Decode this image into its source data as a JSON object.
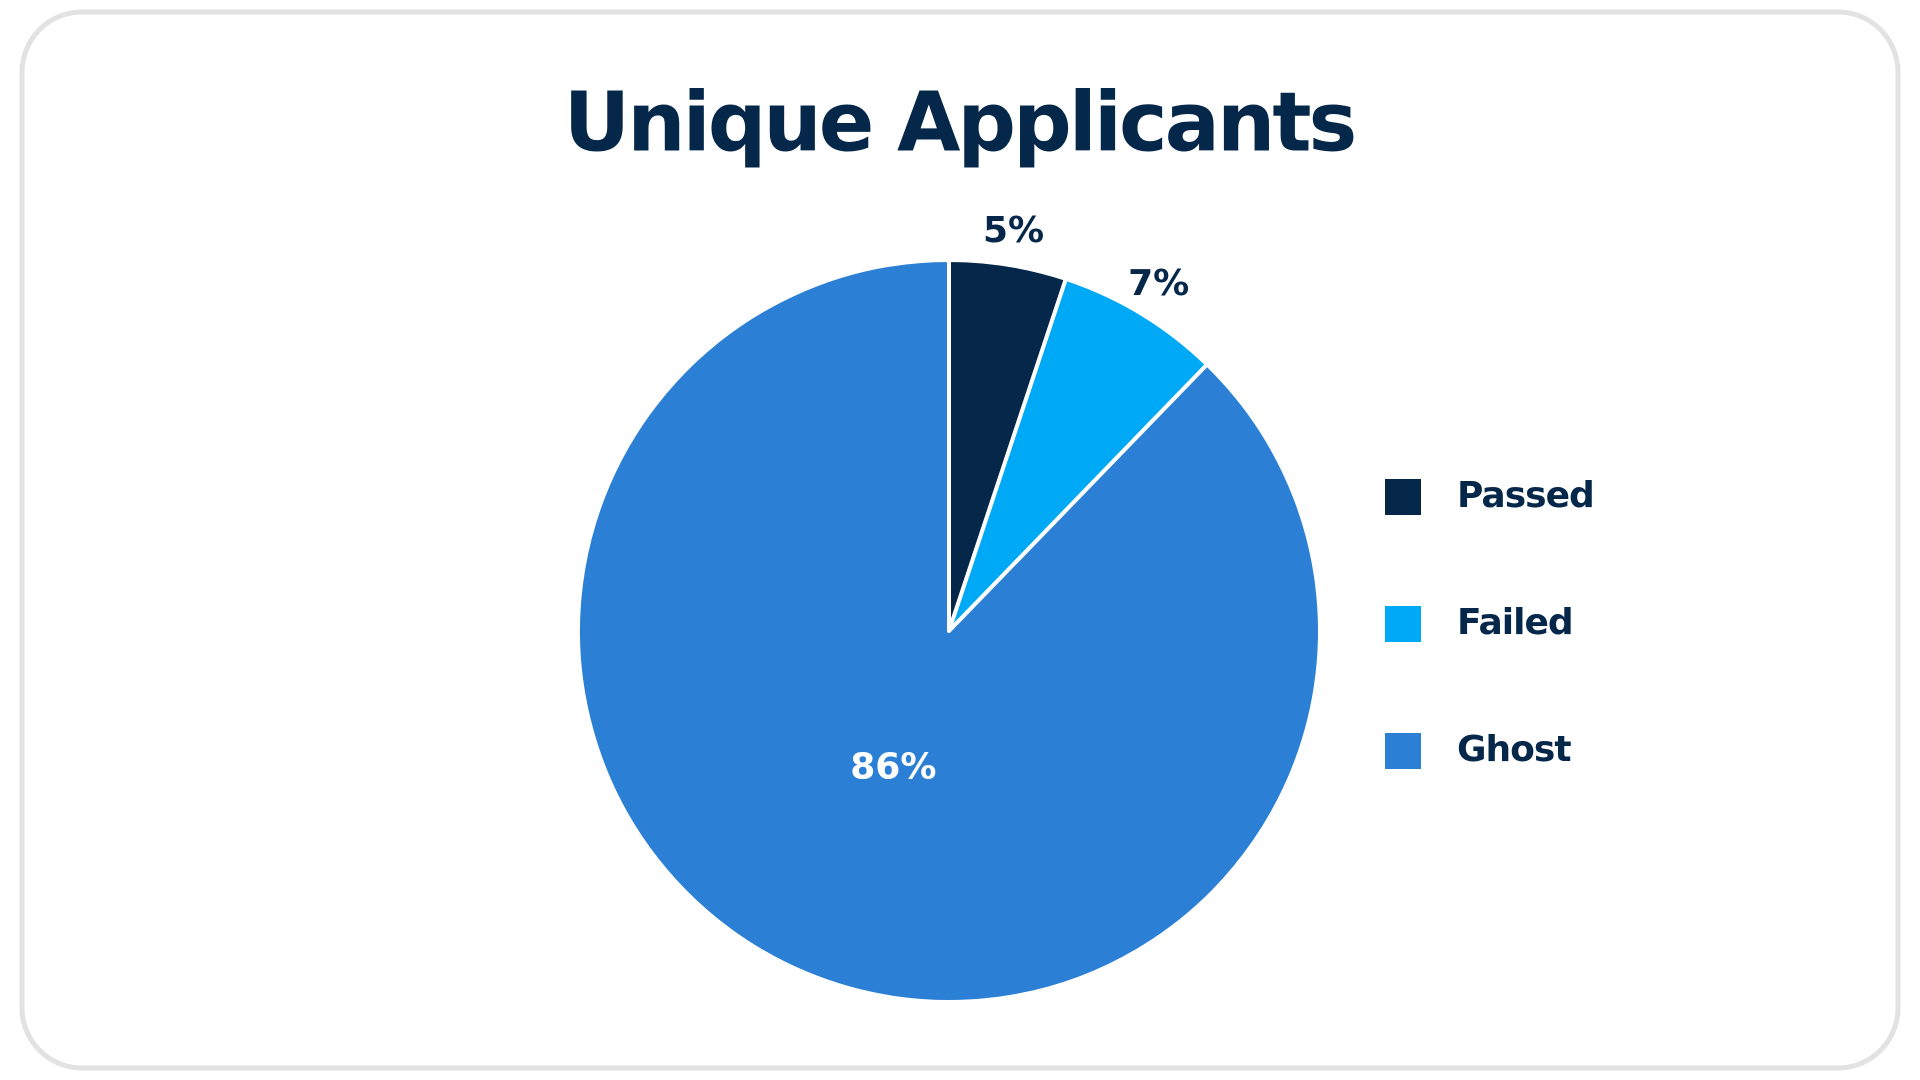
{
  "chart_data": {
    "type": "pie",
    "title": "Unique Applicants",
    "categories": [
      "Passed",
      "Failed",
      "Ghost"
    ],
    "values": [
      5,
      7,
      86
    ],
    "value_labels": [
      "5%",
      "7%",
      "86%"
    ],
    "colors": [
      "#05274a",
      "#00a9f5",
      "#2b7fd5"
    ],
    "legend": "right"
  }
}
